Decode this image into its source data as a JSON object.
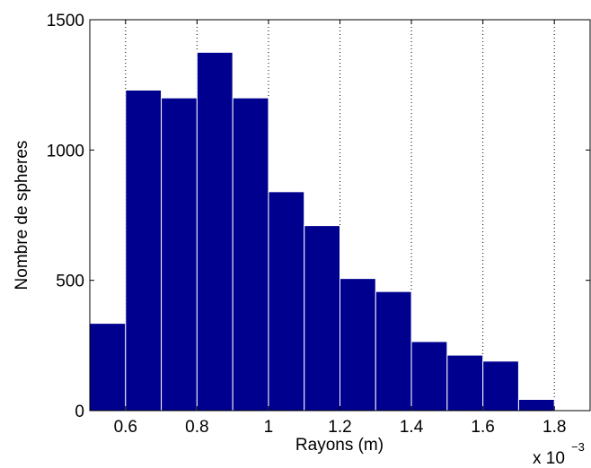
{
  "chart_data": {
    "type": "bar",
    "histogram": true,
    "bin_edges": [
      0.5,
      0.6,
      0.7,
      0.8,
      0.9,
      1.0,
      1.1,
      1.2,
      1.3,
      1.4,
      1.5,
      1.6,
      1.7,
      1.8
    ],
    "values": [
      335,
      1230,
      1200,
      1375,
      1200,
      840,
      710,
      507,
      457,
      265,
      213,
      190,
      43
    ],
    "xlabel": "Rayons (m)",
    "ylabel": "Nombre de spheres",
    "x_scale_base": "x 10",
    "x_scale_exp": "−3",
    "xlim": [
      0.5,
      1.9
    ],
    "ylim": [
      0,
      1500
    ],
    "xticks": [
      {
        "value": 0.6,
        "label": "0.6"
      },
      {
        "value": 0.8,
        "label": "0.8"
      },
      {
        "value": 1.0,
        "label": "1"
      },
      {
        "value": 1.2,
        "label": "1.2"
      },
      {
        "value": 1.4,
        "label": "1.4"
      },
      {
        "value": 1.6,
        "label": "1.6"
      },
      {
        "value": 1.8,
        "label": "1.8"
      }
    ],
    "yticks": [
      {
        "value": 0,
        "label": "0"
      },
      {
        "value": 500,
        "label": "500"
      },
      {
        "value": 1000,
        "label": "1000"
      },
      {
        "value": 1500,
        "label": "1500"
      }
    ],
    "xgrid": "dotted",
    "bar_color": "#00008f",
    "edge_color": "#ffffff"
  }
}
